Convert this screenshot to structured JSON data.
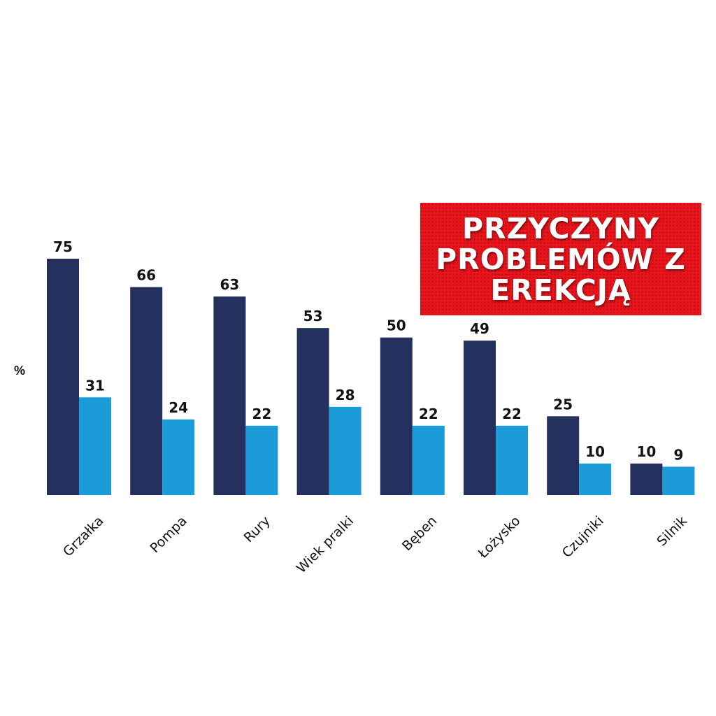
{
  "chart_data": {
    "type": "bar",
    "title": "PRZYCZYNY\nPROBLEMÓW Z\nEREKCJĄ",
    "ylabel": "%",
    "xlabel": "",
    "ylim": [
      0,
      75
    ],
    "grid": false,
    "categories": [
      "Grzałka",
      "Pompa",
      "Rury",
      "Wiek pralki",
      "Bęben",
      "Łożysko",
      "Czujniki",
      "Silnik"
    ],
    "series": [
      {
        "values": [
          75,
          66,
          63,
          53,
          50,
          49,
          25,
          10
        ]
      },
      {
        "values": [
          31,
          24,
          22,
          28,
          22,
          22,
          10,
          9
        ]
      }
    ]
  },
  "colors": {
    "series_1": "#24305e",
    "series_2": "#1b9cd8",
    "title_bg": "#e8151d",
    "title_text": "#ffffff"
  }
}
